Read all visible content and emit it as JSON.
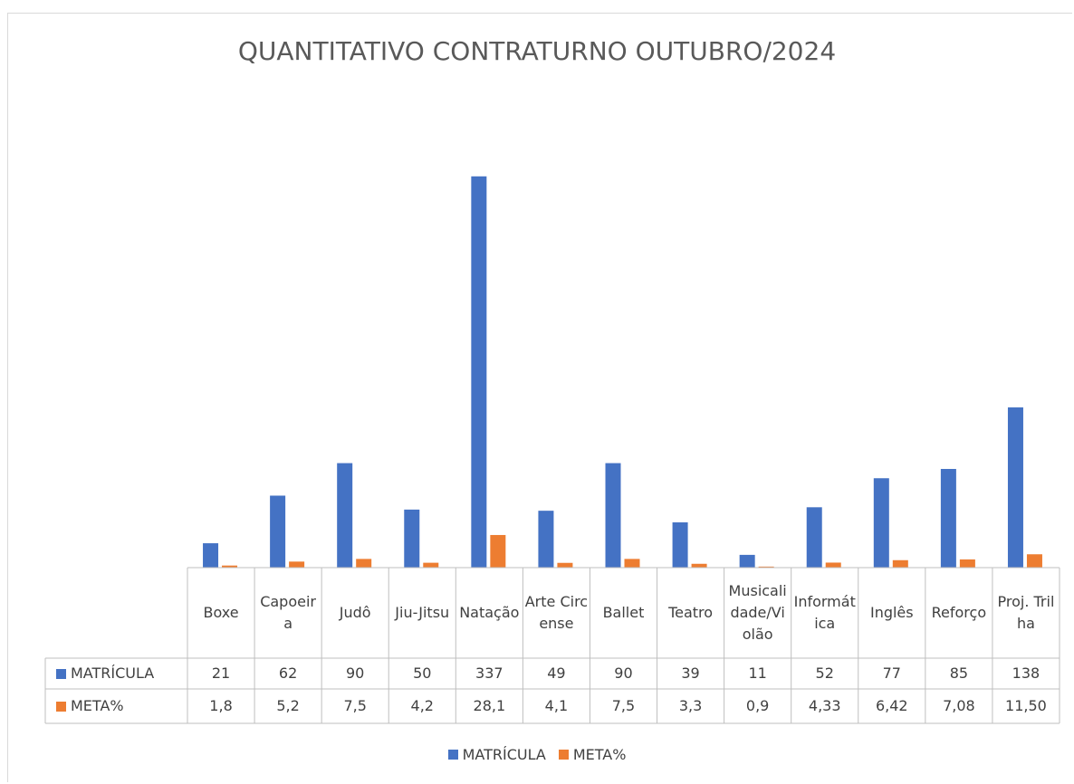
{
  "chart_data": {
    "type": "bar",
    "title": "QUANTITATIVO CONTRATURNO OUTUBRO/2024",
    "categories": [
      "Boxe",
      "Capoeira",
      "Judô",
      "Jiu-Jitsu",
      "Natação",
      "Arte Circense",
      "Ballet",
      "Teatro",
      "Musicalidade/Violão",
      "Informática",
      "Inglês",
      "Reforço",
      "Proj. Trilha"
    ],
    "series": [
      {
        "name": "MATRÍCULA",
        "color": "#4472c4",
        "values": [
          21,
          62,
          90,
          50,
          337,
          49,
          90,
          39,
          11,
          52,
          77,
          85,
          138
        ]
      },
      {
        "name": "META%",
        "color": "#ed7d31",
        "values": [
          1.8,
          5.2,
          7.5,
          4.2,
          28.1,
          4.1,
          7.5,
          3.3,
          0.9,
          4.33,
          6.42,
          7.08,
          11.5
        ],
        "value_labels": [
          "1,8",
          "5,2",
          "7,5",
          "4,2",
          "28,1",
          "4,1",
          "7,5",
          "3,3",
          "0,9",
          "4,33",
          "6,42",
          "7,08",
          "11,50"
        ]
      }
    ],
    "ylim": [
      0,
      400
    ],
    "legend": "bottom",
    "data_table": true
  }
}
